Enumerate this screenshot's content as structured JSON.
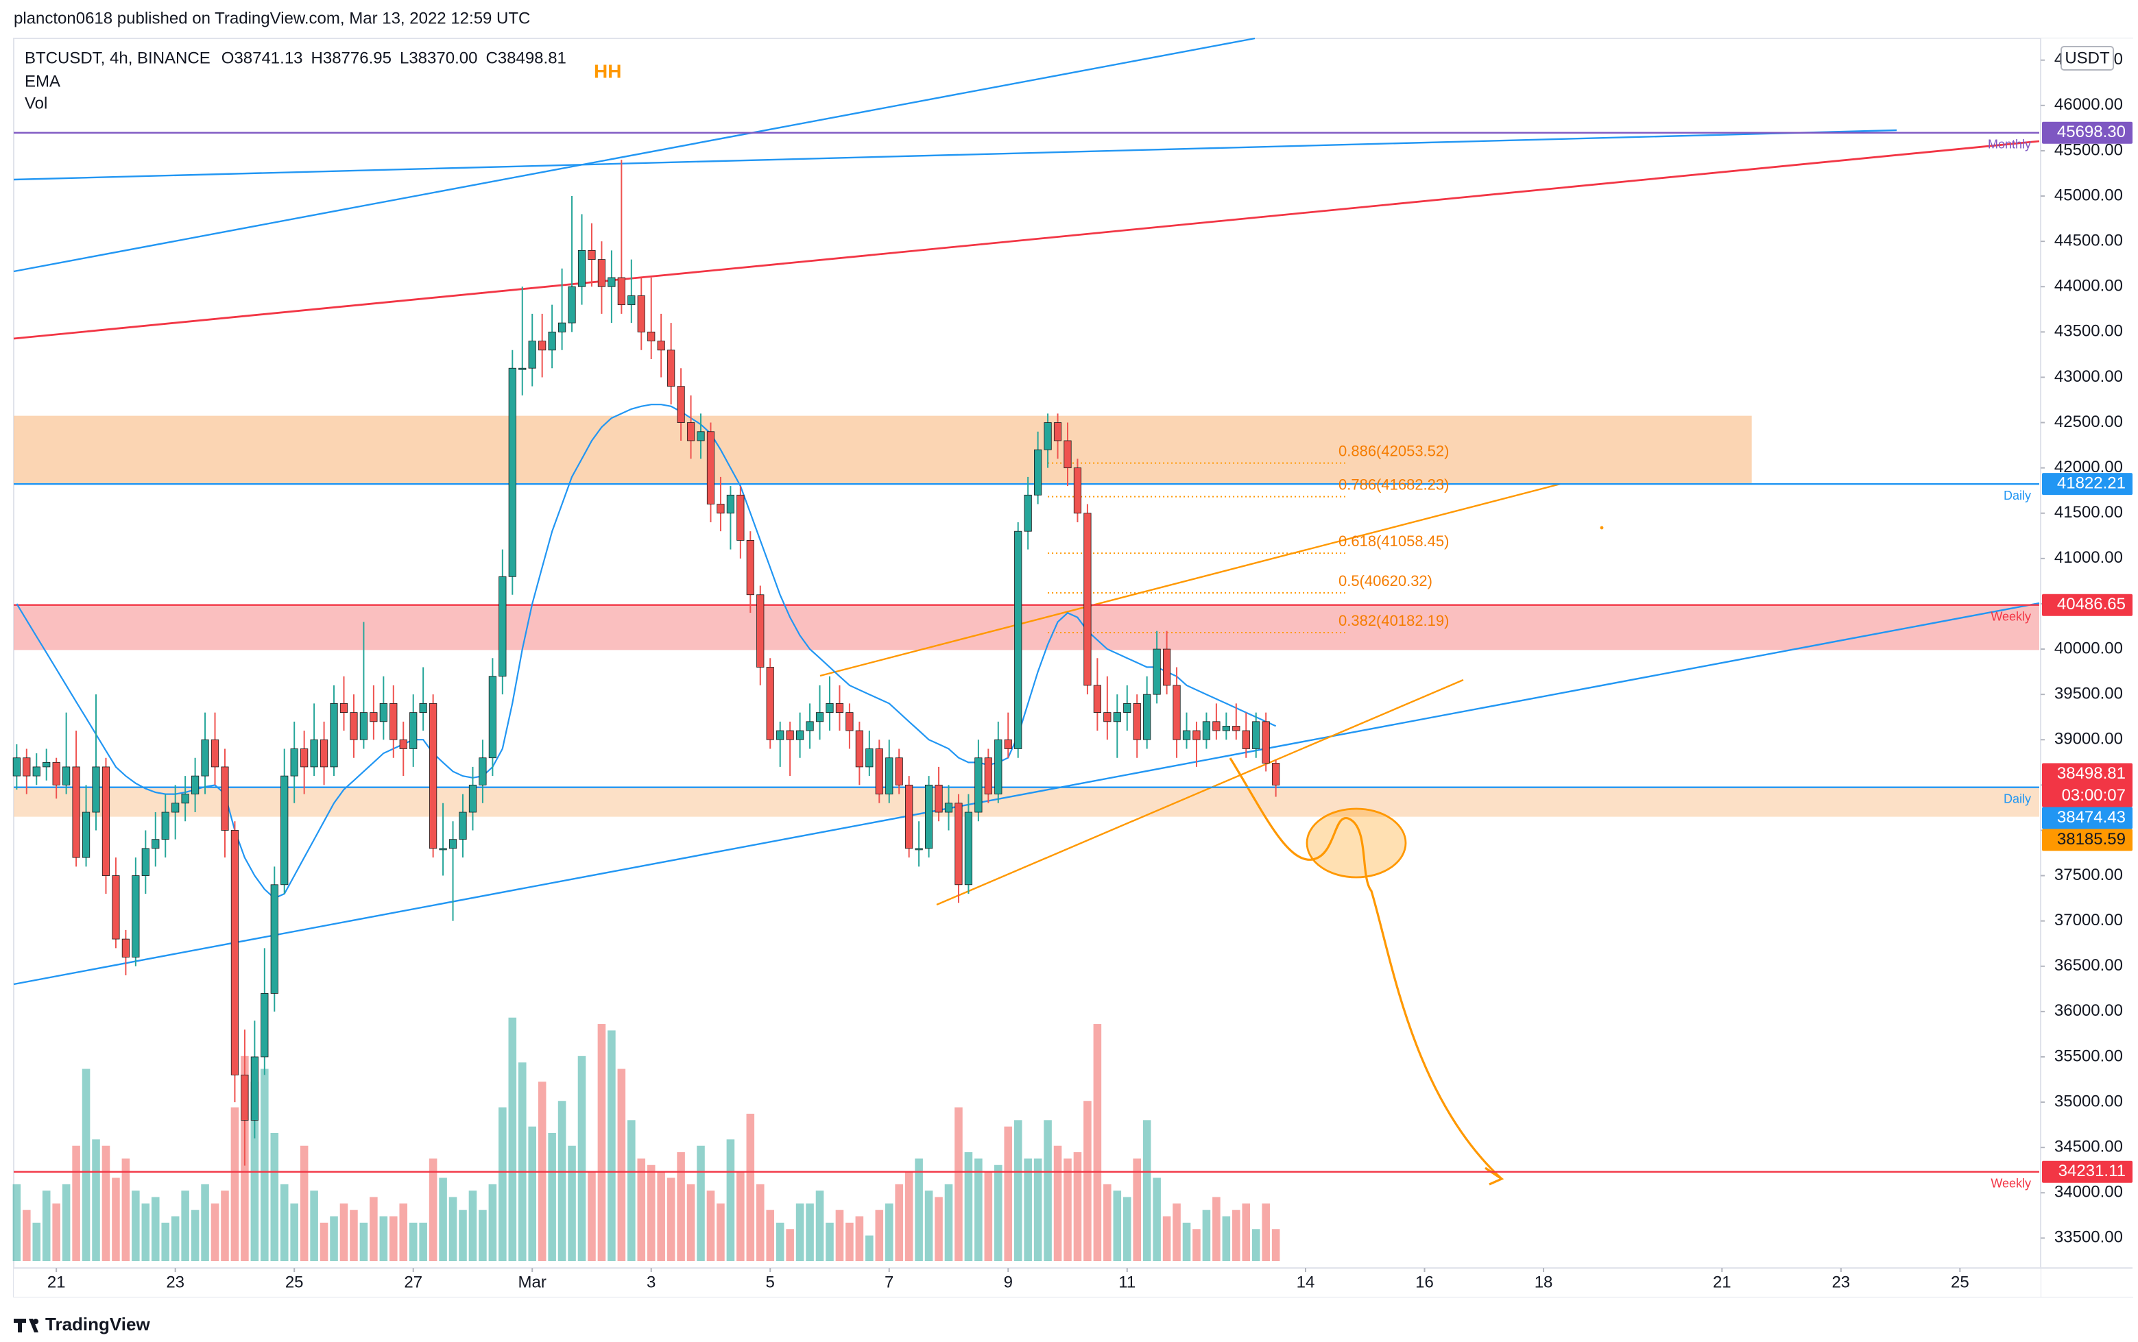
{
  "header": {
    "text": "plancton0618 published on TradingView.com, Mar 13, 2022 12:59 UTC"
  },
  "footer": {
    "logo": "TradingView"
  },
  "chart_data": {
    "type": "candlestick",
    "symbol": "BTCUSDT, 4h, BINANCE",
    "ohlc_keys": [
      "O",
      "H",
      "L",
      "C"
    ],
    "ohlc_values": [
      38741.13,
      38776.95,
      38370,
      38498.81
    ],
    "ohlc_value_labels": [
      "38741.13",
      "38776.95",
      "38370.00",
      "38498.81"
    ],
    "indicators": [
      "EMA",
      "Vol"
    ],
    "annotation": "HH",
    "currency": "USDT",
    "up_color": "#26a69a",
    "down_color": "#ef5350",
    "ema_color": "#2196f3",
    "xlim": [
      -0.3,
      204
    ],
    "xticks": [
      {
        "value": 4,
        "label": "21"
      },
      {
        "value": 16,
        "label": "23"
      },
      {
        "value": 28,
        "label": "25"
      },
      {
        "value": 40,
        "label": "27"
      },
      {
        "value": 52,
        "label": "Mar"
      },
      {
        "value": 64,
        "label": "3"
      },
      {
        "value": 76,
        "label": "5"
      },
      {
        "value": 88,
        "label": "7"
      },
      {
        "value": 100,
        "label": "9"
      },
      {
        "value": 112,
        "label": "11"
      },
      {
        "value": 130,
        "label": "14"
      },
      {
        "value": 142,
        "label": "16"
      },
      {
        "value": 154,
        "label": "18"
      },
      {
        "value": 172,
        "label": "21"
      },
      {
        "value": 184,
        "label": "23"
      },
      {
        "value": 196,
        "label": "25"
      }
    ],
    "ylim": [
      33170,
      46740
    ],
    "yticks": [
      {
        "value": 33500,
        "label": "33500.00"
      },
      {
        "value": 34000,
        "label": "34000.00"
      },
      {
        "value": 34500,
        "label": "34500.00"
      },
      {
        "value": 35000,
        "label": "35000.00"
      },
      {
        "value": 35500,
        "label": "35500.00"
      },
      {
        "value": 36000,
        "label": "36000.00"
      },
      {
        "value": 36500,
        "label": "36500.00"
      },
      {
        "value": 37000,
        "label": "37000.00"
      },
      {
        "value": 37500,
        "label": "37500.00"
      },
      {
        "value": 38000,
        "label": "38000.00"
      },
      {
        "value": 38500,
        "label": "38500.00"
      },
      {
        "value": 39000,
        "label": "39000.00"
      },
      {
        "value": 39500,
        "label": "39500.00"
      },
      {
        "value": 40000,
        "label": "40000.00"
      },
      {
        "value": 40500,
        "label": "40500.00"
      },
      {
        "value": 41000,
        "label": "41000.00"
      },
      {
        "value": 41500,
        "label": "41500.00"
      },
      {
        "value": 42000,
        "label": "42000.00"
      },
      {
        "value": 42500,
        "label": "42500.00"
      },
      {
        "value": 43000,
        "label": "43000.00"
      },
      {
        "value": 43500,
        "label": "43500.00"
      },
      {
        "value": 44000,
        "label": "44000.00"
      },
      {
        "value": 44500,
        "label": "44500.00"
      },
      {
        "value": 45000,
        "label": "45000.00"
      },
      {
        "value": 45500,
        "label": "45500.00"
      },
      {
        "value": 46000,
        "label": "46000.00"
      },
      {
        "value": 46500,
        "label": "46500.00"
      }
    ],
    "vlim": [
      0,
      200
    ],
    "candles": [
      [
        38600,
        38950,
        38450,
        38800
      ],
      [
        38800,
        38900,
        38400,
        38600
      ],
      [
        38600,
        38850,
        38500,
        38700
      ],
      [
        38700,
        38900,
        38550,
        38750
      ],
      [
        38750,
        38800,
        38350,
        38500
      ],
      [
        38500,
        39300,
        38400,
        38700
      ],
      [
        38700,
        39100,
        37600,
        37700
      ],
      [
        37700,
        38500,
        37600,
        38200
      ],
      [
        38200,
        39500,
        38000,
        38700
      ],
      [
        38700,
        38800,
        37300,
        37500
      ],
      [
        37500,
        37700,
        36700,
        36800
      ],
      [
        36800,
        36900,
        36400,
        36600
      ],
      [
        36600,
        37700,
        36500,
        37500
      ],
      [
        37500,
        38000,
        37300,
        37800
      ],
      [
        37800,
        38200,
        37600,
        37900
      ],
      [
        37900,
        38400,
        37700,
        38200
      ],
      [
        38200,
        38500,
        37900,
        38300
      ],
      [
        38300,
        38600,
        38100,
        38400
      ],
      [
        38400,
        38800,
        38200,
        38600
      ],
      [
        38600,
        39300,
        38400,
        39000
      ],
      [
        39000,
        39300,
        38500,
        38700
      ],
      [
        38700,
        38900,
        37700,
        38000
      ],
      [
        38000,
        38100,
        35000,
        35300
      ],
      [
        35300,
        35800,
        34300,
        34800
      ],
      [
        34800,
        35900,
        34600,
        35500
      ],
      [
        35500,
        36700,
        35300,
        36200
      ],
      [
        36200,
        37600,
        36000,
        37400
      ],
      [
        37400,
        38900,
        37300,
        38600
      ],
      [
        38600,
        39200,
        38300,
        38900
      ],
      [
        38900,
        39100,
        38400,
        38700
      ],
      [
        38700,
        39400,
        38600,
        39000
      ],
      [
        39000,
        39200,
        38500,
        38700
      ],
      [
        38700,
        39600,
        38600,
        39400
      ],
      [
        39400,
        39700,
        39100,
        39300
      ],
      [
        39300,
        39500,
        38800,
        39000
      ],
      [
        39000,
        40300,
        38900,
        39300
      ],
      [
        39300,
        39600,
        39000,
        39200
      ],
      [
        39200,
        39700,
        39000,
        39400
      ],
      [
        39400,
        39600,
        38800,
        39000
      ],
      [
        39000,
        39200,
        38600,
        38900
      ],
      [
        38900,
        39500,
        38700,
        39300
      ],
      [
        39300,
        39800,
        39100,
        39400
      ],
      [
        39400,
        39500,
        37700,
        37800
      ],
      [
        37800,
        38300,
        37500,
        37800
      ],
      [
        37800,
        38100,
        37000,
        37900
      ],
      [
        37900,
        38400,
        37700,
        38200
      ],
      [
        38200,
        38700,
        38000,
        38500
      ],
      [
        38500,
        39000,
        38300,
        38800
      ],
      [
        38800,
        39900,
        38600,
        39700
      ],
      [
        39700,
        41100,
        39500,
        40800
      ],
      [
        40800,
        43300,
        40600,
        43100
      ],
      [
        43100,
        44000,
        42800,
        43100
      ],
      [
        43100,
        43700,
        42900,
        43400
      ],
      [
        43400,
        43700,
        43000,
        43300
      ],
      [
        43300,
        43800,
        43100,
        43500
      ],
      [
        43500,
        44200,
        43300,
        43600
      ],
      [
        43600,
        45000,
        43500,
        44000
      ],
      [
        44000,
        44800,
        43800,
        44400
      ],
      [
        44400,
        44700,
        44000,
        44300
      ],
      [
        44300,
        44500,
        43700,
        44000
      ],
      [
        44000,
        44400,
        43600,
        44100
      ],
      [
        44100,
        45400,
        43700,
        43800
      ],
      [
        43800,
        44300,
        43600,
        43900
      ],
      [
        43900,
        44100,
        43300,
        43500
      ],
      [
        43500,
        44100,
        43200,
        43400
      ],
      [
        43400,
        43700,
        43000,
        43300
      ],
      [
        43300,
        43600,
        42700,
        42900
      ],
      [
        42900,
        43100,
        42300,
        42500
      ],
      [
        42500,
        42800,
        42100,
        42300
      ],
      [
        42300,
        42600,
        42100,
        42400
      ],
      [
        42400,
        42500,
        41400,
        41600
      ],
      [
        41600,
        41900,
        41300,
        41500
      ],
      [
        41500,
        41800,
        41100,
        41700
      ],
      [
        41700,
        41800,
        41000,
        41200
      ],
      [
        41200,
        41300,
        40400,
        40600
      ],
      [
        40600,
        40700,
        39600,
        39800
      ],
      [
        39800,
        39900,
        38900,
        39000
      ],
      [
        39000,
        39200,
        38700,
        39100
      ],
      [
        39100,
        39200,
        38600,
        39000
      ],
      [
        39000,
        39300,
        38800,
        39100
      ],
      [
        39100,
        39400,
        38900,
        39200
      ],
      [
        39200,
        39600,
        39000,
        39300
      ],
      [
        39300,
        39700,
        39100,
        39400
      ],
      [
        39400,
        39600,
        39100,
        39300
      ],
      [
        39300,
        39400,
        38900,
        39100
      ],
      [
        39100,
        39200,
        38500,
        38700
      ],
      [
        38700,
        39100,
        38600,
        38900
      ],
      [
        38900,
        39000,
        38300,
        38400
      ],
      [
        38400,
        39000,
        38300,
        38800
      ],
      [
        38800,
        38900,
        38400,
        38500
      ],
      [
        38500,
        38600,
        37700,
        37800
      ],
      [
        37800,
        38100,
        37600,
        37800
      ],
      [
        37800,
        38600,
        37700,
        38500
      ],
      [
        38500,
        38700,
        38100,
        38200
      ],
      [
        38200,
        38500,
        38000,
        38300
      ],
      [
        38300,
        38400,
        37200,
        37400
      ],
      [
        37400,
        38400,
        37300,
        38200
      ],
      [
        38200,
        39000,
        38100,
        38800
      ],
      [
        38800,
        38900,
        38300,
        38400
      ],
      [
        38400,
        39200,
        38300,
        39000
      ],
      [
        39000,
        39300,
        38800,
        38900
      ],
      [
        38900,
        41400,
        38800,
        41300
      ],
      [
        41300,
        41900,
        41100,
        41700
      ],
      [
        41700,
        42400,
        41600,
        42200
      ],
      [
        42200,
        42600,
        42000,
        42500
      ],
      [
        42500,
        42600,
        42100,
        42300
      ],
      [
        42300,
        42500,
        41800,
        42000
      ],
      [
        42000,
        42100,
        41400,
        41500
      ],
      [
        41500,
        41600,
        39500,
        39600
      ],
      [
        39600,
        39900,
        39100,
        39300
      ],
      [
        39300,
        39700,
        39000,
        39200
      ],
      [
        39200,
        39500,
        38800,
        39300
      ],
      [
        39300,
        39600,
        39100,
        39400
      ],
      [
        39400,
        39500,
        38800,
        39000
      ],
      [
        39000,
        39700,
        38900,
        39500
      ],
      [
        39500,
        40200,
        39400,
        40000
      ],
      [
        40000,
        40200,
        39500,
        39600
      ],
      [
        39600,
        39800,
        38800,
        39000
      ],
      [
        39000,
        39300,
        38900,
        39100
      ],
      [
        39100,
        39200,
        38700,
        39000
      ],
      [
        39000,
        39300,
        38900,
        39200
      ],
      [
        39200,
        39400,
        39000,
        39100
      ],
      [
        39100,
        39300,
        39000,
        39150
      ],
      [
        39150,
        39400,
        39000,
        39100
      ],
      [
        39100,
        39300,
        38800,
        38900
      ],
      [
        38900,
        39300,
        38800,
        39200
      ],
      [
        39200,
        39300,
        38650,
        38741.13
      ],
      [
        38741.13,
        38776.95,
        38370,
        38498.81
      ]
    ],
    "ema_values": [
      40500,
      40320,
      40140,
      39960,
      39780,
      39600,
      39420,
      39240,
      39060,
      38880,
      38700,
      38600,
      38520,
      38460,
      38420,
      38400,
      38400,
      38420,
      38450,
      38480,
      38500,
      38400,
      38000,
      37700,
      37500,
      37350,
      37250,
      37300,
      37500,
      37700,
      37900,
      38100,
      38300,
      38450,
      38550,
      38650,
      38750,
      38850,
      38900,
      38950,
      39000,
      39000,
      38850,
      38750,
      38650,
      38600,
      38580,
      38600,
      38700,
      38900,
      39400,
      40000,
      40500,
      40900,
      41300,
      41600,
      41900,
      42100,
      42300,
      42450,
      42550,
      42600,
      42650,
      42680,
      42700,
      42700,
      42680,
      42620,
      42550,
      42480,
      42380,
      42200,
      42000,
      41800,
      41500,
      41200,
      40900,
      40600,
      40350,
      40150,
      40000,
      39900,
      39800,
      39700,
      39600,
      39550,
      39500,
      39450,
      39400,
      39300,
      39200,
      39100,
      39000,
      38950,
      38900,
      38800,
      38750,
      38750,
      38720,
      38750,
      38800,
      39050,
      39400,
      39750,
      40050,
      40300,
      40400,
      40350,
      40200,
      40100,
      40000,
      39950,
      39900,
      39850,
      39800,
      39800,
      39750,
      39700,
      39600,
      39550,
      39500,
      39450,
      39400,
      39350,
      39300,
      39250,
      39200,
      39150
    ],
    "volumes": [
      60,
      40,
      30,
      55,
      45,
      60,
      90,
      150,
      95,
      90,
      65,
      80,
      55,
      45,
      50,
      30,
      35,
      55,
      40,
      60,
      45,
      55,
      120,
      160,
      140,
      150,
      100,
      60,
      45,
      90,
      55,
      30,
      35,
      45,
      40,
      30,
      50,
      35,
      35,
      45,
      30,
      30,
      80,
      65,
      50,
      40,
      55,
      40,
      60,
      120,
      190,
      155,
      105,
      140,
      100,
      125,
      90,
      160,
      70,
      185,
      180,
      150,
      110,
      80,
      75,
      70,
      65,
      85,
      60,
      90,
      55,
      45,
      95,
      70,
      115,
      60,
      40,
      30,
      25,
      45,
      45,
      55,
      30,
      40,
      30,
      35,
      20,
      40,
      45,
      60,
      70,
      80,
      55,
      50,
      60,
      120,
      85,
      80,
      70,
      75,
      105,
      110,
      80,
      80,
      110,
      90,
      80,
      85,
      125,
      185,
      60,
      55,
      50,
      80,
      110,
      65,
      35,
      45,
      30,
      25,
      40,
      50,
      35,
      40,
      45,
      25,
      45,
      25
    ],
    "zones": [
      {
        "top": 42575,
        "bottom": 41822.21,
        "x_end": 175,
        "color": "#f9c79a"
      },
      {
        "top": 40486.65,
        "bottom": 39990,
        "x_end": 204,
        "color": "#f8a9a9"
      },
      {
        "top": 38474.43,
        "bottom": 38150,
        "x_end": 204,
        "color": "#fbd5b3"
      }
    ],
    "levels": [
      {
        "value": 45698.3,
        "label": "45698.30",
        "tag": "Monthly",
        "color": "#7e57c2"
      },
      {
        "value": 41822.21,
        "label": "41822.21",
        "tag": "Daily",
        "color": "#2196f3"
      },
      {
        "value": 40486.65,
        "label": "40486.65",
        "tag": "Weekly",
        "color": "#f23645"
      },
      {
        "value": 38474.43,
        "label": "38474.43",
        "tag": "Daily",
        "color": "#2196f3"
      },
      {
        "value": 34231.11,
        "label": "34231.11",
        "tag": "Weekly",
        "color": "#f23645"
      }
    ],
    "fib": [
      {
        "text": "0.886(42053.52)",
        "value": 42053.52
      },
      {
        "text": "0.786(41682.23)",
        "value": 41682.23
      },
      {
        "text": "0.618(41058.45)",
        "value": 41058.45
      },
      {
        "text": "0.5(40620.32)",
        "value": 40620.32
      },
      {
        "text": "0.382(40182.19)",
        "value": 40182.19
      }
    ],
    "last_price": {
      "value": 38498.81,
      "label": "38498.81",
      "countdown": "03:00:07",
      "color": "#f23645"
    },
    "price_tag": {
      "value": 38185.59,
      "label": "38185.59",
      "color": "#ff9800"
    }
  }
}
